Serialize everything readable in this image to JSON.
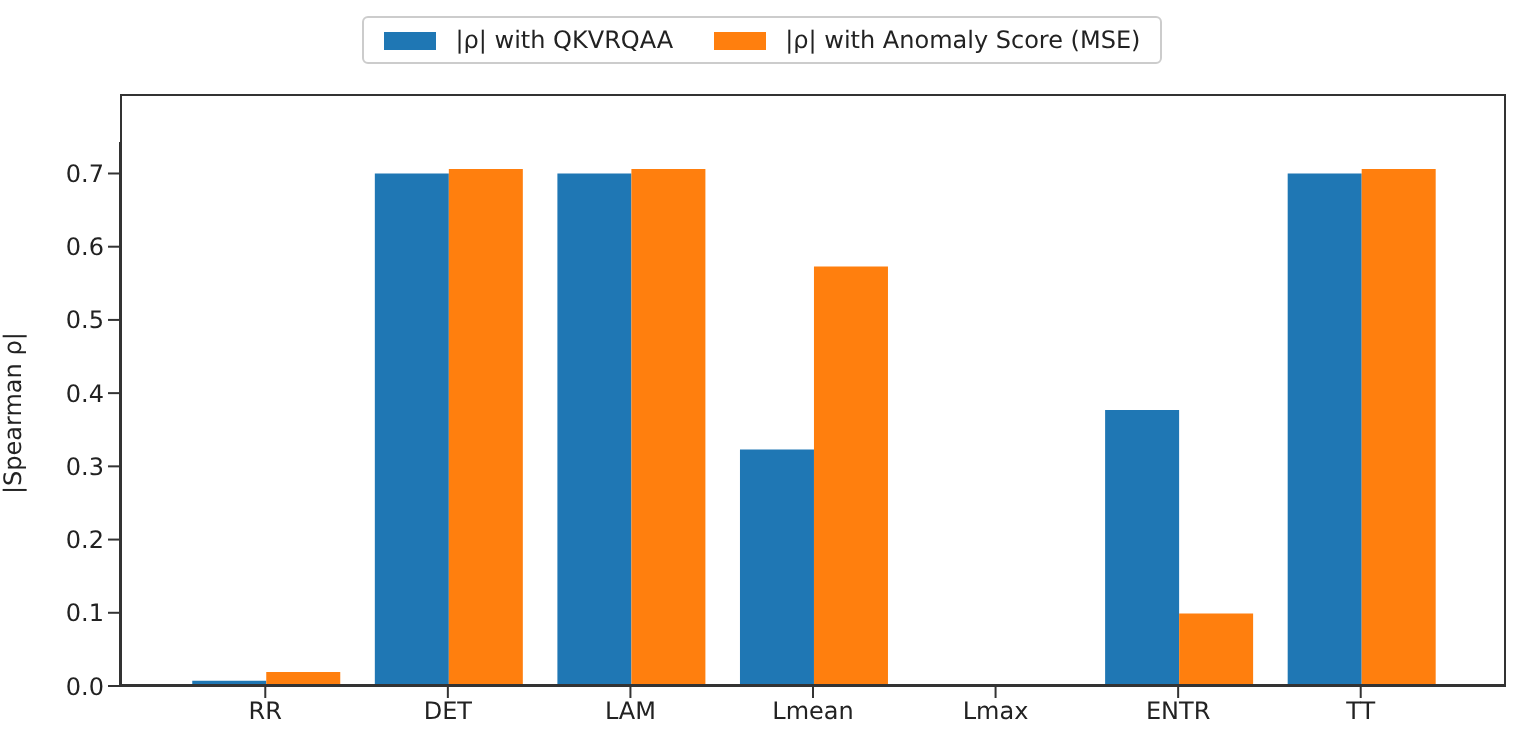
{
  "chart_data": {
    "type": "bar",
    "ylabel": "|Spearman ρ|",
    "categories": [
      "RR",
      "DET",
      "LAM",
      "Lmean",
      "Lmax",
      "ENTR",
      "TT"
    ],
    "series": [
      {
        "name": "|ρ| with QKVRQAA",
        "color": "#1f77b4",
        "values": [
          0.007,
          0.7,
          0.7,
          0.323,
          0,
          0.377,
          0.7
        ]
      },
      {
        "name": "|ρ| with Anomaly Score (MSE)",
        "color": "#ff7f0e",
        "values": [
          0.019,
          0.706,
          0.706,
          0.573,
          0,
          0.099,
          0.706
        ]
      }
    ],
    "ylim": [
      0,
      0.743
    ],
    "yticks": [
      {
        "value": 0,
        "label": "0.0"
      },
      0.1,
      0.2,
      0.3,
      0.4,
      0.5,
      0.6,
      0.7
    ],
    "grid": false,
    "legend": "top"
  }
}
